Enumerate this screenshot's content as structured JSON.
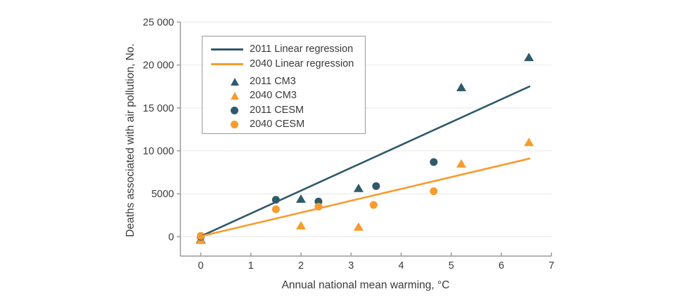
{
  "chart_data": {
    "type": "scatter",
    "title": "",
    "xlabel": "Annual national mean warming, °C",
    "ylabel": "Deaths associated with air pollution, No.",
    "xlim": [
      -0.41,
      7.0
    ],
    "ylim": [
      -2250,
      25000
    ],
    "x_ticks": [
      0,
      1,
      2,
      3,
      4,
      5,
      6,
      7
    ],
    "y_ticks": [
      0,
      5000,
      10000,
      15000,
      20000,
      25000
    ],
    "y_tick_labels": [
      "0",
      "5000",
      "10 000",
      "15 000",
      "20 000",
      "25 000"
    ],
    "grid": true,
    "legend_position": "upper-left",
    "colors": {
      "year2011": "#305A6A",
      "year2040": "#F89B2D",
      "grid": "#E7E7E7",
      "axis": "#9A9A9A",
      "text": "#3A3A3A"
    },
    "lines": [
      {
        "name": "2011 Linear regression",
        "color_key": "year2011",
        "x": [
          0,
          6.56
        ],
        "y": [
          50,
          17500
        ]
      },
      {
        "name": "2040 Linear regression",
        "color_key": "year2040",
        "x": [
          0,
          6.56
        ],
        "y": [
          50,
          9100
        ]
      }
    ],
    "series": [
      {
        "name": "2011 CM3",
        "marker": "triangle",
        "color_key": "year2011",
        "points": [
          [
            0,
            -300
          ],
          [
            2.0,
            4400
          ],
          [
            3.15,
            5650
          ],
          [
            5.2,
            17400
          ],
          [
            6.55,
            20900
          ]
        ]
      },
      {
        "name": "2040 CM3",
        "marker": "triangle",
        "color_key": "year2040",
        "points": [
          [
            0,
            -400
          ],
          [
            2.0,
            1300
          ],
          [
            3.15,
            1150
          ],
          [
            5.2,
            8500
          ],
          [
            6.55,
            11000
          ]
        ]
      },
      {
        "name": "2011 CESM",
        "marker": "circle",
        "color_key": "year2011",
        "points": [
          [
            0,
            0
          ],
          [
            1.5,
            4300
          ],
          [
            2.35,
            4100
          ],
          [
            3.5,
            5900
          ],
          [
            4.65,
            8700
          ]
        ]
      },
      {
        "name": "2040 CESM",
        "marker": "circle",
        "color_key": "year2040",
        "points": [
          [
            0,
            100
          ],
          [
            1.5,
            3200
          ],
          [
            2.35,
            3500
          ],
          [
            3.45,
            3700
          ],
          [
            4.65,
            5300
          ]
        ]
      }
    ],
    "legend": [
      {
        "label": "2011 Linear regression",
        "swatch": "line",
        "color_key": "year2011"
      },
      {
        "label": "2040 Linear regression",
        "swatch": "line",
        "color_key": "year2040"
      },
      {
        "label": "2011 CM3",
        "swatch": "triangle",
        "color_key": "year2011"
      },
      {
        "label": "2040 CM3",
        "swatch": "triangle",
        "color_key": "year2040"
      },
      {
        "label": "2011 CESM",
        "swatch": "circle",
        "color_key": "year2011"
      },
      {
        "label": "2040 CESM",
        "swatch": "circle",
        "color_key": "year2040"
      }
    ]
  }
}
